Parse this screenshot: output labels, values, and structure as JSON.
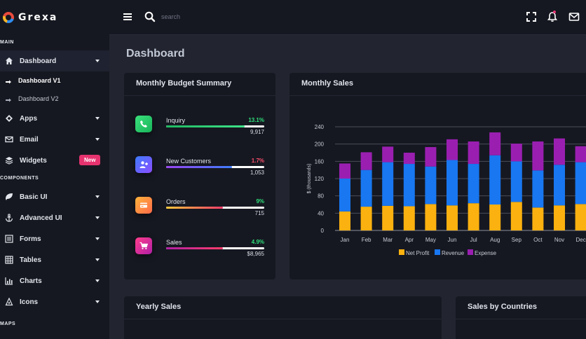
{
  "brand": {
    "name": "Grexa"
  },
  "sidebar": {
    "sections": {
      "main": "MAIN",
      "components": "COMPONENTS",
      "maps": "MAPS"
    },
    "dashboard": {
      "label": "Dashboard",
      "icon": "home-icon"
    },
    "sub_items": [
      {
        "label": "Dashboard V1"
      },
      {
        "label": "Dashboard V2"
      }
    ],
    "items_main": [
      {
        "label": "Apps",
        "icon": "apps-icon"
      },
      {
        "label": "Email",
        "icon": "mail-icon"
      },
      {
        "label": "Widgets",
        "icon": "layers-icon",
        "badge": "New"
      }
    ],
    "items_components": [
      {
        "label": "Basic UI",
        "icon": "leaf-icon"
      },
      {
        "label": "Advanced UI",
        "icon": "anchor-icon"
      },
      {
        "label": "Forms",
        "icon": "forms-icon"
      },
      {
        "label": "Tables",
        "icon": "table-icon"
      },
      {
        "label": "Charts",
        "icon": "chart-icon"
      },
      {
        "label": "Icons",
        "icon": "icons-icon"
      }
    ]
  },
  "topbar": {
    "search_placeholder": "search"
  },
  "page": {
    "title": "Dashboard"
  },
  "budget": {
    "title": "Monthly Budget Summary",
    "rows": [
      {
        "label": "Inquiry",
        "percent": "13.1%",
        "value": "9,917",
        "fill": 0.8,
        "pct_color": "#2ee07a",
        "icon": "phone-icon"
      },
      {
        "label": "New Customers",
        "percent": "1.7%",
        "value": "1,053",
        "fill": 0.67,
        "pct_color": "#ff4f6e",
        "icon": "add-user-icon"
      },
      {
        "label": "Orders",
        "percent": "9%",
        "value": "715",
        "fill": 0.58,
        "pct_color": "#2ee07a",
        "icon": "card-icon"
      },
      {
        "label": "Sales",
        "percent": "4.9%",
        "value": "$8,965",
        "fill": 0.58,
        "pct_color": "#2ee07a",
        "icon": "cart-icon"
      }
    ]
  },
  "sales": {
    "title": "Monthly Sales",
    "chart_data": {
      "type": "bar",
      "stacked": true,
      "categories": [
        "Jan",
        "Feb",
        "Mar",
        "Apr",
        "May",
        "Jun",
        "Jul",
        "Aug",
        "Sep",
        "Oct",
        "Nov",
        "Dec"
      ],
      "ylabel": "$ (thousands)",
      "ylim": [
        0,
        240
      ],
      "yticks": [
        0,
        40,
        80,
        120,
        160,
        200,
        240
      ],
      "grid": true,
      "legend": "bottom",
      "series": [
        {
          "name": "Net Profit",
          "color": "#fbb10f",
          "values": [
            44,
            55,
            57,
            56,
            61,
            58,
            63,
            60,
            66,
            53,
            58,
            61
          ]
        },
        {
          "name": "Revenue",
          "color": "#1877f1",
          "values": [
            76,
            85,
            101,
            98,
            87,
            105,
            91,
            114,
            94,
            86,
            94,
            97
          ]
        },
        {
          "name": "Expense",
          "color": "#9a1fb1",
          "values": [
            35,
            41,
            36,
            26,
            45,
            48,
            52,
            53,
            41,
            67,
            61,
            37
          ]
        }
      ]
    }
  },
  "yearly": {
    "title": "Yearly Sales"
  },
  "countries": {
    "title": "Sales by Countries"
  }
}
